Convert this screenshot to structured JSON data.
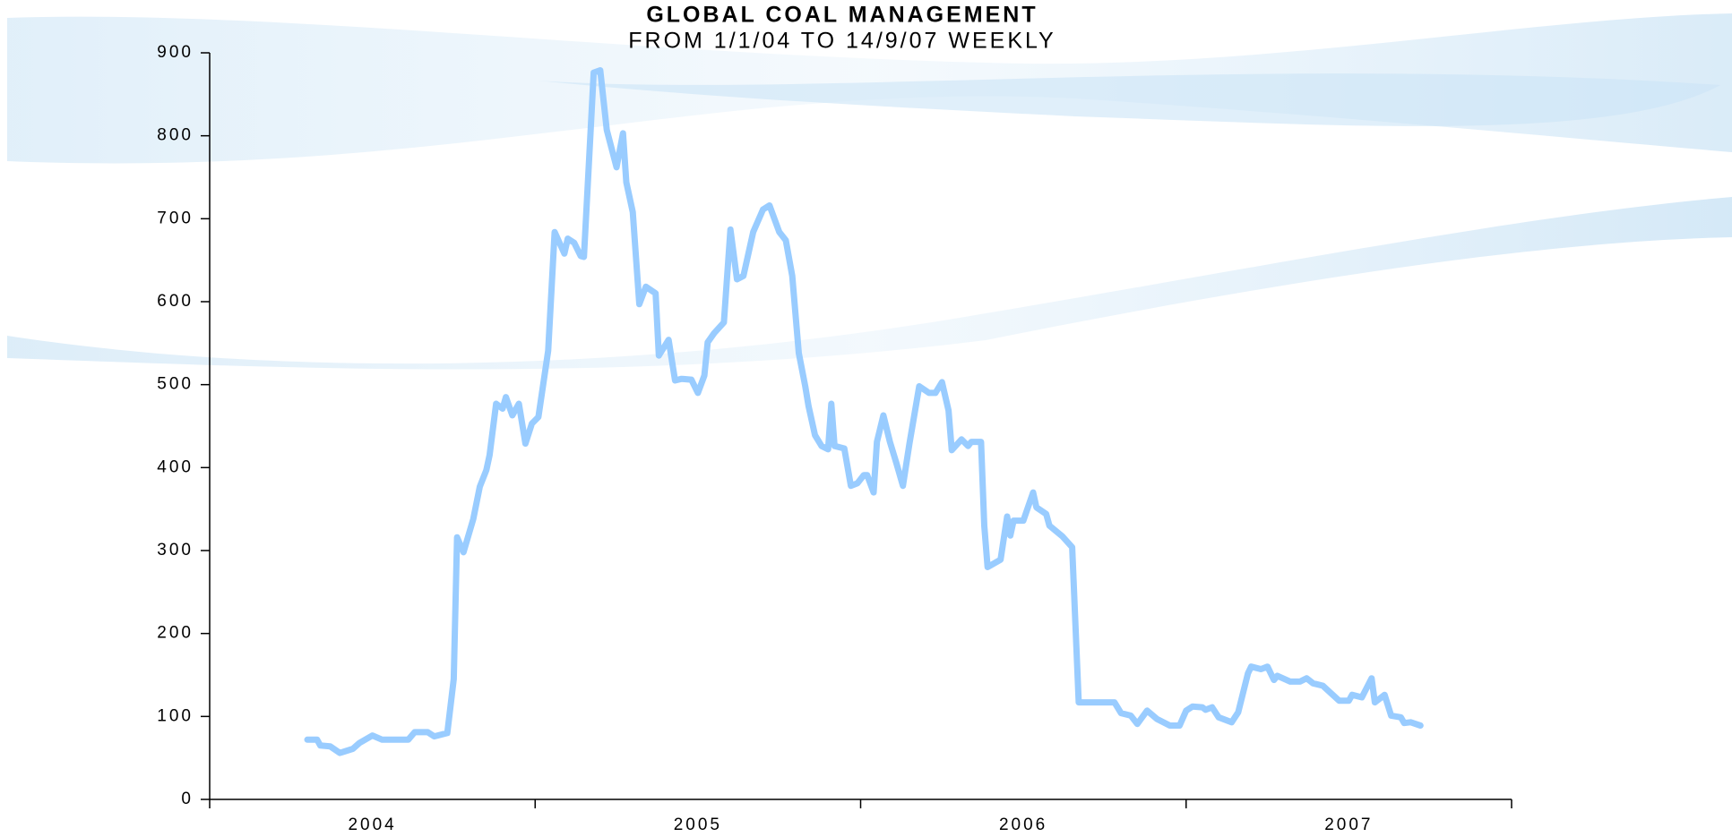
{
  "chart_data": {
    "type": "line",
    "title": "GLOBAL COAL MANAGEMENT",
    "subtitle": "FROM 1/1/04 TO 14/9/07 WEEKLY",
    "xlim": [
      2004,
      2008
    ],
    "xticks": [
      2004,
      2005,
      2006,
      2007,
      2008
    ],
    "year_labels": [
      "2004",
      "2005",
      "2006",
      "2007"
    ],
    "ylim": [
      0,
      900
    ],
    "yticks": [
      0,
      100,
      200,
      300,
      400,
      500,
      600,
      700,
      800,
      900
    ],
    "series": [
      {
        "color": "#99ccff",
        "x": [
          2004.3,
          2004.33,
          2004.34,
          2004.37,
          2004.4,
          2004.44,
          2004.46,
          2004.5,
          2004.53,
          2004.61,
          2004.63,
          2004.67,
          2004.69,
          2004.73,
          2004.75,
          2004.76,
          2004.78,
          2004.81,
          2004.83,
          2004.85,
          2004.86,
          2004.88,
          2004.9,
          2004.91,
          2004.93,
          2004.95,
          2004.97,
          2004.99,
          2005.01,
          2005.04,
          2005.06,
          2005.09,
          2005.1,
          2005.12,
          2005.14,
          2005.15,
          2005.18,
          2005.2,
          2005.22,
          2005.25,
          2005.27,
          2005.28,
          2005.3,
          2005.32,
          2005.34,
          2005.37,
          2005.38,
          2005.41,
          2005.43,
          2005.45,
          2005.48,
          2005.5,
          2005.52,
          2005.53,
          2005.55,
          2005.58,
          2005.6,
          2005.62,
          2005.64,
          2005.67,
          2005.7,
          2005.72,
          2005.75,
          2005.77,
          2005.79,
          2005.81,
          2005.83,
          2005.84,
          2005.86,
          2005.88,
          2005.9,
          2005.91,
          2005.92,
          2005.95,
          2005.97,
          2005.99,
          2006.01,
          2006.02,
          2006.04,
          2006.05,
          2006.07,
          2006.09,
          2006.11,
          2006.13,
          2006.15,
          2006.18,
          2006.21,
          2006.23,
          2006.25,
          2006.27,
          2006.28,
          2006.31,
          2006.33,
          2006.34,
          2006.37,
          2006.38,
          2006.39,
          2006.43,
          2006.45,
          2006.46,
          2006.47,
          2006.5,
          2006.53,
          2006.54,
          2006.57,
          2006.58,
          2006.62,
          2006.65,
          2006.67,
          2006.78,
          2006.8,
          2006.83,
          2006.85,
          2006.88,
          2006.91,
          2006.95,
          2006.98,
          2007.0,
          2007.02,
          2007.05,
          2007.06,
          2007.08,
          2007.1,
          2007.14,
          2007.16,
          2007.19,
          2007.2,
          2007.23,
          2007.25,
          2007.27,
          2007.28,
          2007.32,
          2007.35,
          2007.37,
          2007.39,
          2007.42,
          2007.47,
          2007.5,
          2007.51,
          2007.54,
          2007.57,
          2007.58,
          2007.61,
          2007.63,
          2007.66,
          2007.67,
          2007.69,
          2007.72
        ],
        "values": [
          72,
          72,
          65,
          64,
          56,
          61,
          68,
          77,
          72,
          72,
          81,
          81,
          76,
          80,
          145,
          316,
          298,
          338,
          377,
          397,
          415,
          477,
          471,
          485,
          463,
          477,
          429,
          453,
          461,
          541,
          684,
          658,
          676,
          671,
          655,
          654,
          876,
          879,
          807,
          762,
          803,
          744,
          708,
          597,
          618,
          610,
          535,
          554,
          505,
          507,
          506,
          490,
          511,
          551,
          562,
          575,
          687,
          627,
          631,
          684,
          711,
          716,
          684,
          674,
          631,
          538,
          498,
          474,
          439,
          426,
          422,
          477,
          426,
          423,
          378,
          381,
          391,
          391,
          370,
          431,
          463,
          431,
          405,
          378,
          429,
          498,
          490,
          490,
          503,
          469,
          421,
          434,
          426,
          431,
          431,
          330,
          280,
          289,
          341,
          318,
          336,
          336,
          370,
          352,
          344,
          330,
          317,
          304,
          117,
          117,
          104,
          101,
          91,
          107,
          97,
          89,
          89,
          107,
          112,
          111,
          108,
          111,
          99,
          93,
          105,
          152,
          160,
          157,
          160,
          144,
          149,
          142,
          142,
          146,
          140,
          137,
          119,
          119,
          126,
          123,
          146,
          117,
          126,
          101,
          99,
          92,
          93,
          89
        ]
      }
    ]
  }
}
